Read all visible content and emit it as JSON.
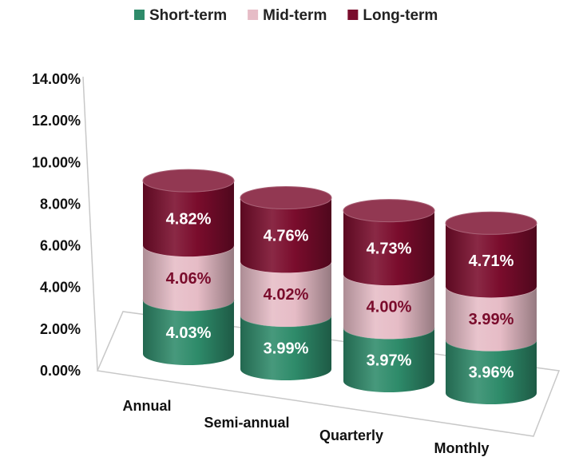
{
  "chart_data": {
    "type": "bar",
    "stacked": true,
    "style": "3d-cylinder",
    "categories": [
      "Annual",
      "Semi-annual",
      "Quarterly",
      "Monthly"
    ],
    "series": [
      {
        "name": "Short-term",
        "color": "#2e8b6a",
        "label_color": "#ffffff",
        "values": [
          4.03,
          3.99,
          3.97,
          3.96
        ],
        "labels": [
          "4.03%",
          "3.99%",
          "3.97%",
          "3.96%"
        ]
      },
      {
        "name": "Mid-term",
        "color": "#e6bcc6",
        "label_color": "#7a0c2c",
        "values": [
          4.06,
          4.02,
          4.0,
          3.99
        ],
        "labels": [
          "4.06%",
          "4.02%",
          "4.00%",
          "3.99%"
        ]
      },
      {
        "name": "Long-term",
        "color": "#7a0c2c",
        "label_color": "#ffffff",
        "values": [
          4.82,
          4.76,
          4.73,
          4.71
        ],
        "labels": [
          "4.82%",
          "4.76%",
          "4.73%",
          "4.71%"
        ]
      }
    ],
    "y_ticks": [
      "0.00%",
      "2.00%",
      "4.00%",
      "6.00%",
      "8.00%",
      "10.00%",
      "12.00%",
      "14.00%"
    ],
    "ylim": [
      0,
      14
    ],
    "legend_position": "top-center",
    "grid": false
  }
}
